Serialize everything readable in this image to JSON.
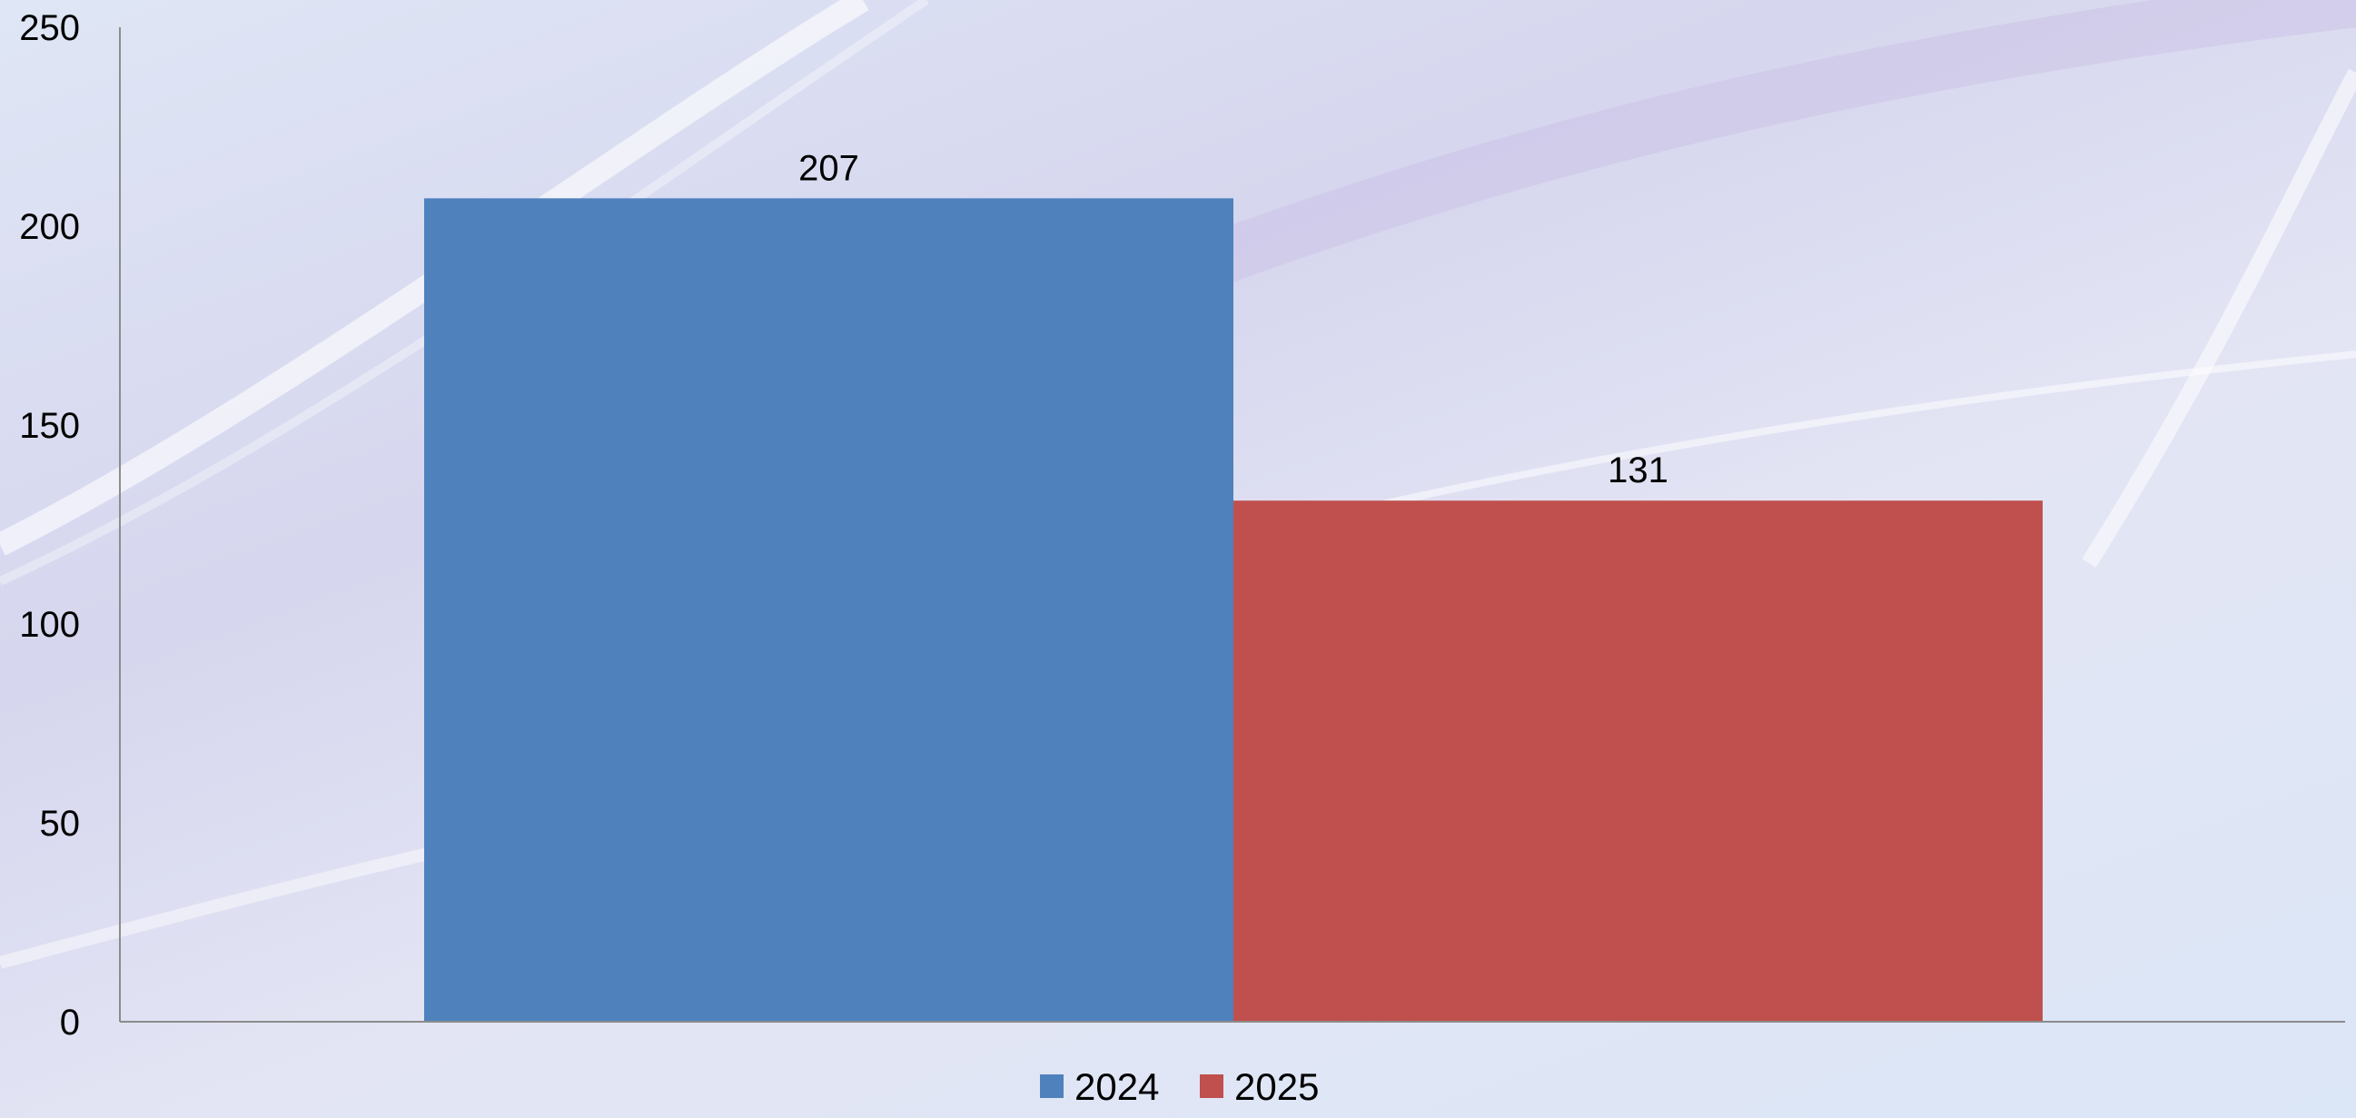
{
  "chart_data": {
    "type": "bar",
    "categories": [
      ""
    ],
    "series": [
      {
        "name": "2024",
        "values": [
          207
        ],
        "color": "#4f81bd"
      },
      {
        "name": "2025",
        "values": [
          131
        ],
        "color": "#c0504d"
      }
    ],
    "ylim": [
      0,
      250
    ],
    "yticks": [
      0,
      50,
      100,
      150,
      200,
      250
    ],
    "data_labels": [
      "207",
      "131"
    ],
    "legend": {
      "position": "bottom",
      "entries": [
        "2024",
        "2025"
      ]
    },
    "grid": false,
    "title": "",
    "xlabel": "",
    "ylabel": ""
  }
}
